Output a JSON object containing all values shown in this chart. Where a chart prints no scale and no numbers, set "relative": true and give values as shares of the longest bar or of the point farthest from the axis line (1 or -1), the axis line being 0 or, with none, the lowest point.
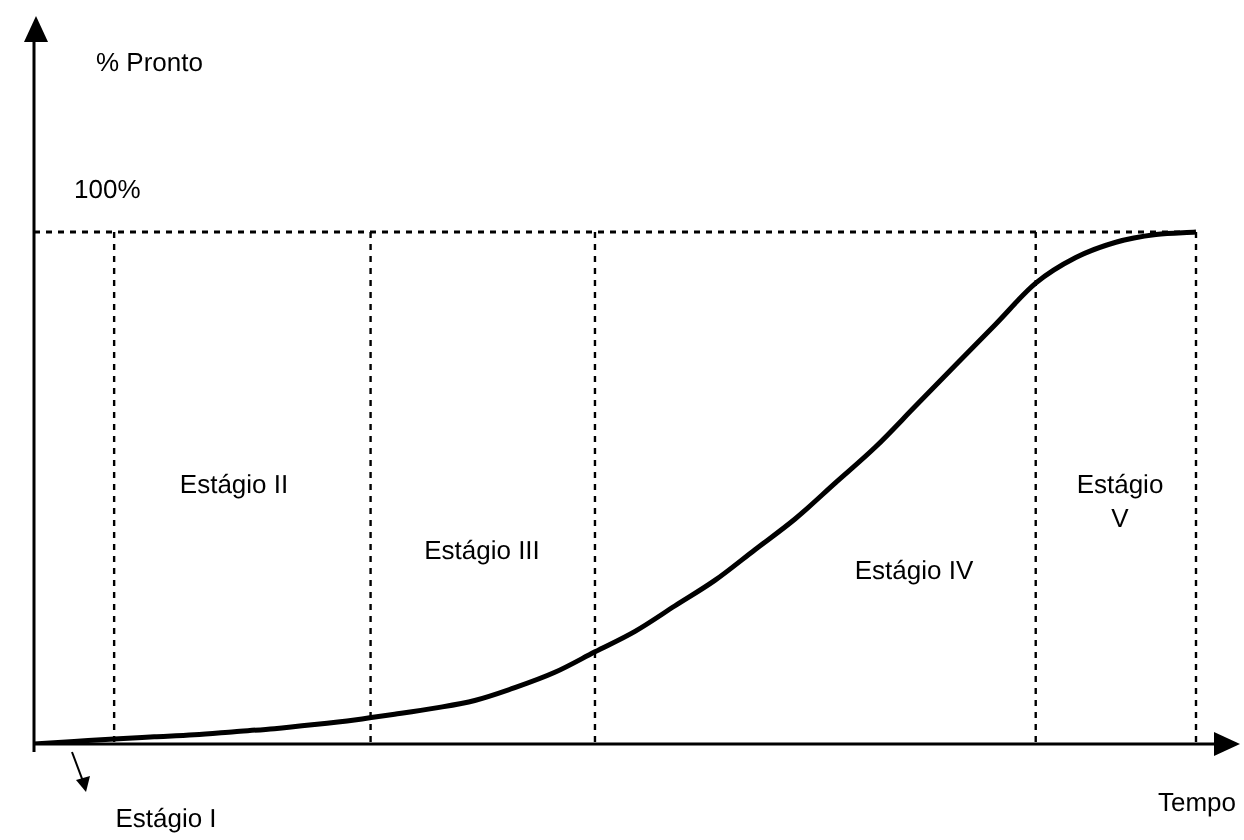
{
  "chart_data": {
    "type": "line",
    "relative": true,
    "xlabel": "Tempo",
    "color": "#000000",
    "line_style": "solid",
    "marker": "none",
    "legend": false,
    "grid": "x",
    "categories": [
      null,
      null,
      null,
      null,
      null,
      null,
      null,
      null,
      null,
      null,
      null,
      null,
      null,
      null,
      null,
      null,
      null,
      null,
      null,
      null,
      null,
      null,
      null,
      null,
      null,
      null,
      null,
      null,
      null,
      null
    ],
    "values": [
      0,
      0.005,
      0.01,
      0.014,
      0.018,
      0.024,
      0.03,
      0.038,
      0.047,
      0.058,
      0.07,
      0.085,
      0.11,
      0.14,
      0.18,
      0.22,
      0.27,
      0.32,
      0.38,
      0.44,
      0.51,
      0.58,
      0.66,
      0.74,
      0.82,
      0.9,
      0.95,
      0.98,
      0.995,
      1
    ],
    "ref_lines": [
      {
        "axis": "y",
        "value": 1,
        "label": "100%",
        "line_style": "dotted"
      }
    ],
    "annotations": [
      "% Pronto",
      "Estágio I",
      "Estágio II",
      "Estágio III",
      "Estágio IV",
      "Estágio V"
    ]
  }
}
